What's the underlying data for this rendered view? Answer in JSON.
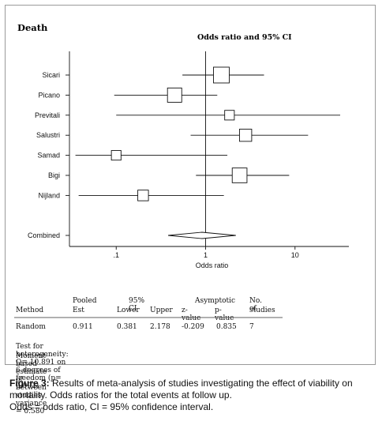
{
  "panel_label": "Death",
  "chart_data": {
    "type": "forest",
    "title": "Odds ratio and 95% CI",
    "xlabel": "Odds ratio",
    "xscale": "log",
    "xlim": [
      0.03,
      40
    ],
    "reference_line": 1,
    "x_ticks": [
      {
        "value": 0.1,
        "label": ".1"
      },
      {
        "value": 1,
        "label": "1"
      },
      {
        "value": 10,
        "label": "10"
      }
    ],
    "studies": [
      {
        "name": "Sicari",
        "or": 1.5,
        "lower": 0.55,
        "upper": 4.5,
        "weight": 1.0
      },
      {
        "name": "Picano",
        "or": 0.45,
        "lower": 0.095,
        "upper": 1.35,
        "weight": 0.85
      },
      {
        "name": "Previtali",
        "or": 1.85,
        "lower": 0.1,
        "upper": 32,
        "weight": 0.4
      },
      {
        "name": "Salustri",
        "or": 2.8,
        "lower": 0.68,
        "upper": 14,
        "weight": 0.65
      },
      {
        "name": "Samad",
        "or": 0.1,
        "lower": 0.035,
        "upper": 1.75,
        "weight": 0.4
      },
      {
        "name": "Bigi",
        "or": 2.4,
        "lower": 0.78,
        "upper": 8.6,
        "weight": 0.9
      },
      {
        "name": "Nijland",
        "or": 0.2,
        "lower": 0.038,
        "upper": 1.6,
        "weight": 0.5
      }
    ],
    "combined": {
      "name": "Combined",
      "or": 0.911,
      "lower": 0.381,
      "upper": 2.178
    }
  },
  "stats_table": {
    "headers": {
      "method": "Method",
      "pooled": "Pooled",
      "est": "Est",
      "ci": "95% CI",
      "lower": "Lower",
      "upper": "Upper",
      "asymptotic": "Asymptotic",
      "zvalue": "z-value",
      "pvalue": "p-value",
      "no_of": "No. of",
      "studies": "studies"
    },
    "row": {
      "method": "Random",
      "est": "0.911",
      "lower": "0.381",
      "upper": "2.178",
      "zvalue": "-0.209",
      "pvalue": "0.835",
      "studies": "7"
    },
    "heterogeneity": "Test for heterogeneity: Q= 10.891 on 6 degrees of freedom (p= 0.092)",
    "variance": "Moment-based estimate of between studies variance =  0.580"
  },
  "caption": {
    "label": "Figure 3:",
    "line1": " Results of meta-analysis of studies investigating the effect of viability on mortality. Odds ratios for the total events at follow up.",
    "line2": "Odds = odds ratio, CI = 95% confidence interval."
  }
}
